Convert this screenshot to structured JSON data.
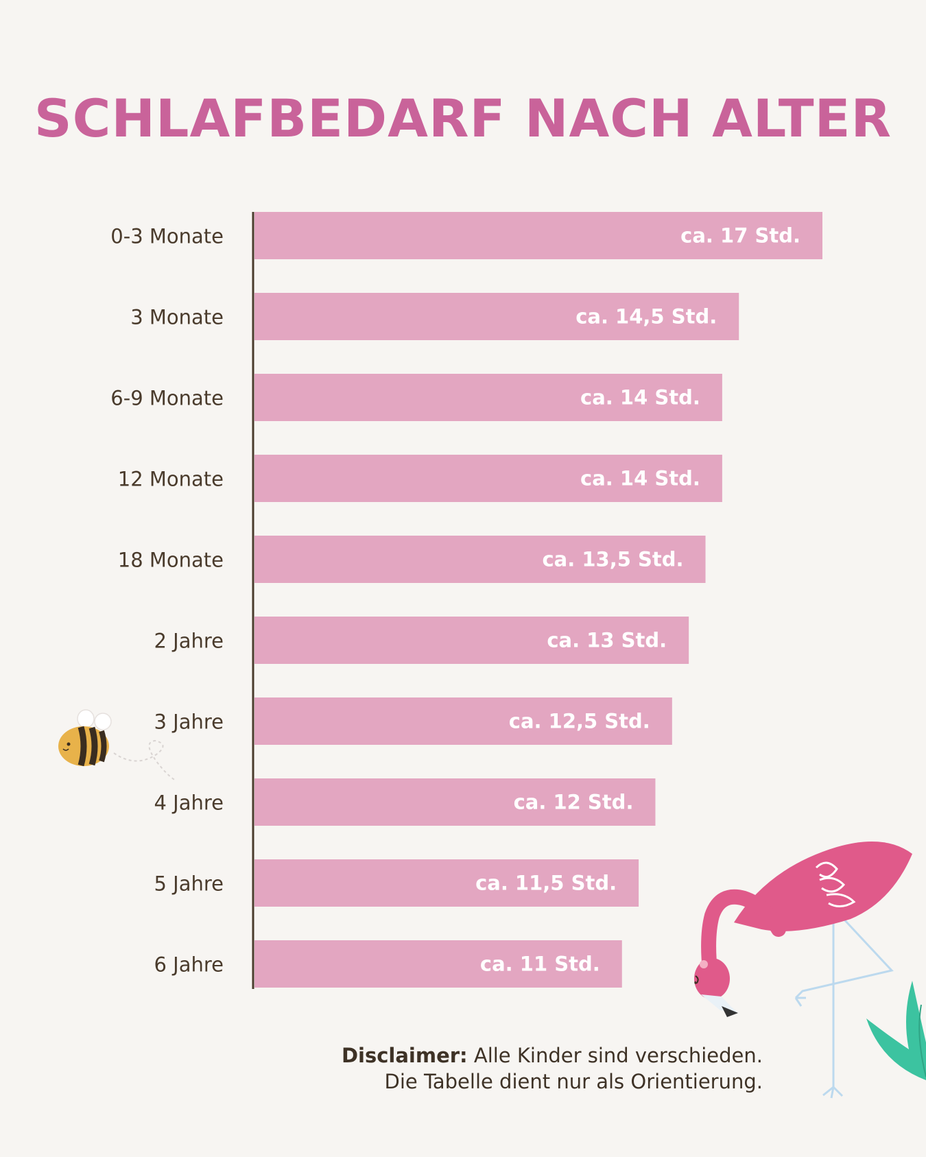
{
  "chart_data": {
    "type": "bar",
    "orientation": "horizontal",
    "title": "SCHLAFBEDARF NACH ALTER",
    "categories": [
      "0-3 Monate",
      "3 Monate",
      "6-9 Monate",
      "12 Monate",
      "18 Monate",
      "2 Jahre",
      "3 Jahre",
      "4 Jahre",
      "5 Jahre",
      "6 Jahre"
    ],
    "values": [
      17,
      14.5,
      14,
      14,
      13.5,
      13,
      12.5,
      12,
      11.5,
      11
    ],
    "value_labels": [
      "ca. 17 Std.",
      "ca. 14,5 Std.",
      "ca. 14 Std.",
      "ca. 14 Std.",
      "ca. 13,5 Std.",
      "ca. 13 Std.",
      "ca. 12,5 Std.",
      "ca. 12 Std.",
      "ca. 11,5 Std.",
      "ca. 11 Std."
    ],
    "xlabel": "",
    "ylabel": "",
    "grid": false,
    "legend": "none",
    "bar_color": "#e3a6c1",
    "axis_color": "#4a3b2c"
  },
  "disclaimer": {
    "bold": "Disclaimer:",
    "line1": "Alle Kinder sind verschieden.",
    "line2": "Die Tabelle dient nur als Orientierung."
  },
  "colors": {
    "background": "#f7f5f2",
    "title": "#c9639a",
    "flamingo": "#e05a8a",
    "leaf": "#3cc3a0",
    "bee": "#e8b24a"
  },
  "decorations": [
    "bee-icon",
    "flamingo-icon",
    "leaf-icon"
  ]
}
